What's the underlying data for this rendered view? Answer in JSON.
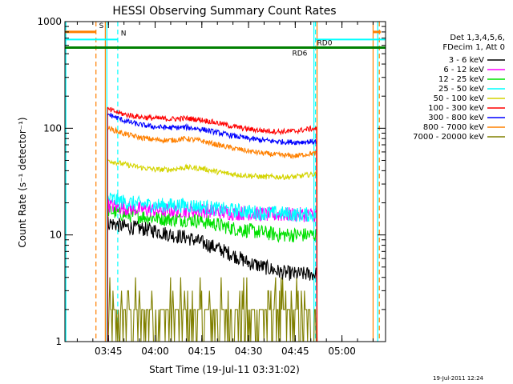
{
  "chart_data": {
    "type": "line",
    "title": "HESSI Observing Summary Count Rates",
    "xlabel": "Start Time (19-Jul-11 03:31:02)",
    "ylabel": "Count Rate (s⁻¹ detector⁻¹)",
    "yscale": "log",
    "ylim": [
      1,
      1000
    ],
    "xlim": [
      "03:31:02",
      "05:14:00"
    ],
    "x_ticks": [
      "03:45",
      "04:00",
      "04:15",
      "04:30",
      "04:45",
      "05:00"
    ],
    "y_ticks": [
      "1",
      "10",
      "100",
      "1000"
    ],
    "grid": false,
    "legend_position": "right",
    "legend_header": [
      "Det 1,3,4,5,6,",
      "FDecim 1, Att 0"
    ],
    "footer": "19-Jul-2011 12:24",
    "series": [
      {
        "name": "3 - 6 keV",
        "color": "#000000",
        "x": [
          "03:45",
          "03:50",
          "03:55",
          "04:00",
          "04:05",
          "04:10",
          "04:15",
          "04:20",
          "04:25",
          "04:30",
          "04:35",
          "04:40",
          "04:45",
          "04:50",
          "04:52"
        ],
        "values": [
          13,
          12,
          11.5,
          11,
          10,
          9.5,
          8.5,
          7.5,
          6.5,
          5.5,
          5,
          4.5,
          4.3,
          4.3,
          4.3
        ]
      },
      {
        "name": "6 - 12 keV",
        "color": "#ff00ff",
        "x": [
          "03:45",
          "03:50",
          "03:55",
          "04:00",
          "04:05",
          "04:10",
          "04:15",
          "04:20",
          "04:25",
          "04:30",
          "04:35",
          "04:40",
          "04:45",
          "04:50",
          "04:52"
        ],
        "values": [
          19,
          18,
          17.5,
          17,
          17,
          17,
          17,
          16.5,
          16,
          16,
          15.5,
          15.5,
          15.5,
          15.5,
          15.5
        ]
      },
      {
        "name": "12 - 25 keV",
        "color": "#00e000",
        "x": [
          "03:45",
          "03:50",
          "03:55",
          "04:00",
          "04:05",
          "04:10",
          "04:15",
          "04:20",
          "04:25",
          "04:30",
          "04:35",
          "04:40",
          "04:45",
          "04:50",
          "04:52"
        ],
        "values": [
          17,
          15.5,
          15,
          14.5,
          14,
          14,
          13.5,
          12.5,
          11.5,
          11,
          10.5,
          10,
          10,
          10,
          10
        ]
      },
      {
        "name": "25 - 50 keV",
        "color": "#00ffff",
        "x": [
          "03:45",
          "03:50",
          "03:55",
          "04:00",
          "04:05",
          "04:10",
          "04:15",
          "04:20",
          "04:25",
          "04:30",
          "04:35",
          "04:40",
          "04:45",
          "04:50",
          "04:52"
        ],
        "values": [
          22,
          20.5,
          19.5,
          19,
          19,
          19,
          18.5,
          17.5,
          17,
          16.5,
          16,
          16,
          15.5,
          15.5,
          15.5
        ]
      },
      {
        "name": "50 - 100 keV",
        "color": "#d4d400",
        "x": [
          "03:45",
          "03:50",
          "03:55",
          "04:00",
          "04:05",
          "04:10",
          "04:15",
          "04:20",
          "04:25",
          "04:30",
          "04:35",
          "04:40",
          "04:45",
          "04:50",
          "04:52"
        ],
        "values": [
          50,
          46,
          43,
          41,
          41,
          43,
          42,
          39,
          37,
          36,
          35,
          35,
          35,
          37,
          37
        ]
      },
      {
        "name": "100 - 300 keV",
        "color": "#ff0000",
        "x": [
          "03:45",
          "03:50",
          "03:55",
          "04:00",
          "04:05",
          "04:10",
          "04:15",
          "04:20",
          "04:25",
          "04:30",
          "04:35",
          "04:40",
          "04:45",
          "04:50",
          "04:52"
        ],
        "values": [
          150,
          135,
          128,
          124,
          122,
          124,
          120,
          112,
          104,
          98,
          95,
          93,
          94,
          99,
          99
        ]
      },
      {
        "name": "300 - 800 keV",
        "color": "#0000ff",
        "x": [
          "03:45",
          "03:50",
          "03:55",
          "04:00",
          "04:05",
          "04:10",
          "04:15",
          "04:20",
          "04:25",
          "04:30",
          "04:35",
          "04:40",
          "04:45",
          "04:50",
          "04:52"
        ],
        "values": [
          135,
          118,
          108,
          103,
          101,
          102,
          98,
          91,
          85,
          80,
          77,
          75,
          74,
          75,
          75
        ]
      },
      {
        "name": "800 - 7000 keV",
        "color": "#ff8000",
        "x": [
          "03:45",
          "03:50",
          "03:55",
          "04:00",
          "04:05",
          "04:10",
          "04:15",
          "04:20",
          "04:25",
          "04:30",
          "04:35",
          "04:40",
          "04:45",
          "04:50",
          "04:52"
        ],
        "values": [
          100,
          89,
          82,
          78,
          77,
          80,
          76,
          70,
          65,
          61,
          58,
          56,
          55,
          58,
          58
        ]
      },
      {
        "name": "7000 - 20000 keV",
        "color": "#808000",
        "x": [
          "03:45",
          "03:50",
          "03:55",
          "04:00",
          "04:05",
          "04:10",
          "04:15",
          "04:20",
          "04:25",
          "04:30",
          "04:35",
          "04:40",
          "04:45",
          "04:50",
          "04:52"
        ],
        "values": [
          2,
          2,
          2,
          2,
          2.3,
          2.3,
          2,
          2,
          2,
          2,
          2,
          2,
          2,
          2.3,
          2.3
        ]
      }
    ],
    "flags": [
      {
        "label": "S",
        "color": "#ff8000",
        "y": 800
      },
      {
        "label": "N",
        "color": "#00ffff",
        "y": 680
      },
      {
        "label": "RD0",
        "color": "#00ffff",
        "y": 680
      },
      {
        "label": "RD6",
        "color": "#008000",
        "y": 570
      }
    ]
  }
}
